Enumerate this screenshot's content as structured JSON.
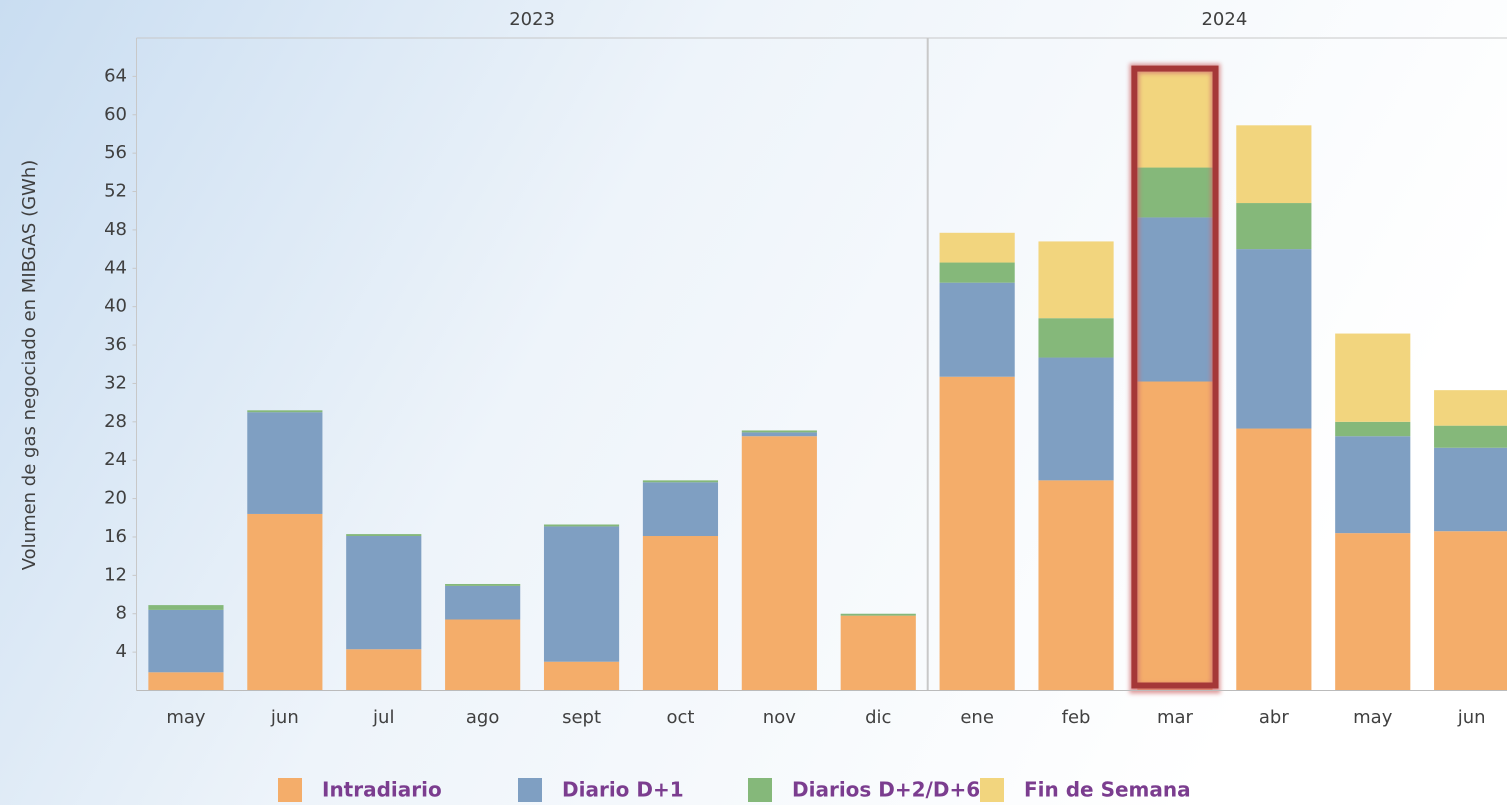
{
  "chart_data": {
    "type": "stacked_bar",
    "y_label": "Volumen de gas negociado en MIBGAS (GWh)",
    "groups": [
      {
        "label": "2023",
        "span": 8
      },
      {
        "label": "2024",
        "span": 6
      }
    ],
    "categories": [
      "may",
      "jun",
      "jul",
      "ago",
      "sept",
      "oct",
      "nov",
      "dic",
      "ene",
      "feb",
      "mar",
      "abr",
      "may",
      "jun"
    ],
    "series": [
      {
        "name": "Intradiario",
        "color": "#f4ad6a",
        "values": [
          1.9,
          18.4,
          4.3,
          7.4,
          3.0,
          16.1,
          26.5,
          7.8,
          32.7,
          21.9,
          32.2,
          27.3,
          16.4,
          16.6
        ]
      },
      {
        "name": "Diario D+1",
        "color": "#7f9fc2",
        "values": [
          6.5,
          10.6,
          11.8,
          3.5,
          14.1,
          5.6,
          0.4,
          0,
          9.8,
          12.8,
          17.1,
          18.7,
          10.1,
          8.7
        ]
      },
      {
        "name": "Diarios D+2/D+6",
        "color": "#85b87a",
        "values": [
          0.5,
          0.2,
          0.2,
          0.2,
          0.2,
          0.2,
          0.2,
          0.2,
          2.1,
          4.1,
          5.2,
          4.8,
          1.5,
          2.3
        ]
      },
      {
        "name": "Fin de Semana",
        "color": "#f2d57e",
        "values": [
          0,
          0,
          0,
          0,
          0,
          0,
          0,
          0,
          3.1,
          8.0,
          10.0,
          8.1,
          9.2,
          3.7
        ]
      }
    ],
    "highlight": 10,
    "ylim": [
      0,
      68
    ],
    "yticks": [
      4,
      8,
      12,
      16,
      20,
      24,
      28,
      32,
      36,
      40,
      44,
      48,
      52,
      56,
      60,
      64
    ]
  }
}
